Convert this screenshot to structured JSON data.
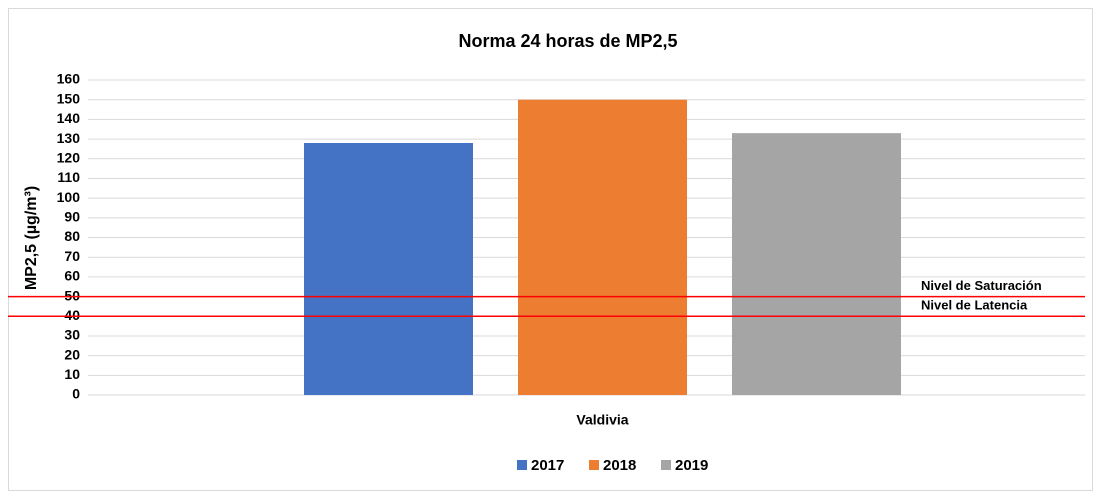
{
  "chart_data": {
    "type": "bar",
    "title": "Norma  24 horas de MP2,5",
    "y_label": "MP2,5 (µg/m³)",
    "categories": [
      "Valdivia"
    ],
    "series": [
      {
        "name": "2017",
        "color": "#4472c4",
        "values": [
          128
        ]
      },
      {
        "name": "2018",
        "color": "#ed7d31",
        "values": [
          150
        ]
      },
      {
        "name": "2019",
        "color": "#a5a5a5",
        "values": [
          133
        ]
      }
    ],
    "reference_lines": [
      {
        "value": 50,
        "label": "Nivel de Saturación",
        "color": "#ff0000"
      },
      {
        "value": 40,
        "label": "Nivel de Latencia",
        "color": "#ff0000"
      }
    ],
    "ylim": [
      0,
      160
    ],
    "yticks": [
      0,
      10,
      20,
      30,
      40,
      50,
      60,
      70,
      80,
      90,
      100,
      110,
      120,
      130,
      140,
      150,
      160
    ],
    "grid": true,
    "legend": "bottom"
  }
}
